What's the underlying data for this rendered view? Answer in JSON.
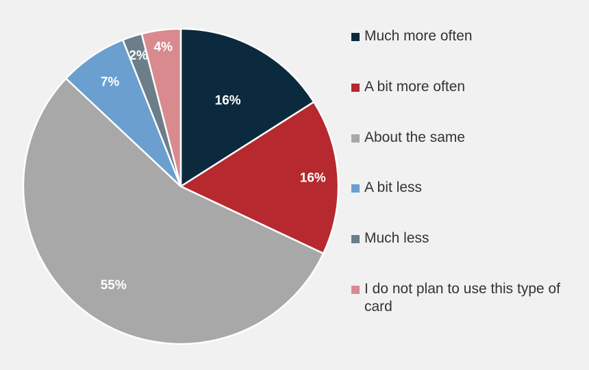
{
  "chart_data": {
    "type": "pie",
    "title": "",
    "legend_position": "right",
    "slices": [
      {
        "name": "Much more often",
        "value": 16,
        "label": "16%",
        "color": "#0b2a3d",
        "label_color": "#ffffff"
      },
      {
        "name": "A bit more often",
        "value": 16,
        "label": "16%",
        "color": "#b5292f",
        "label_color": "#ffffff"
      },
      {
        "name": "About the same",
        "value": 55,
        "label": "55%",
        "color": "#a8a8a8",
        "label_color": "#ffffff"
      },
      {
        "name": "A bit less",
        "value": 7,
        "label": "7%",
        "color": "#6a9fd0",
        "label_color": "#ffffff"
      },
      {
        "name": "Much less",
        "value": 2,
        "label": "2%",
        "color": "#6b7e89",
        "label_color": "#ffffff"
      },
      {
        "name": "I do not plan to use this type of card",
        "value": 4,
        "label": "4%",
        "color": "#d98a8e",
        "label_color": "#ffffff"
      }
    ]
  },
  "legend": {
    "items": [
      "Much more often",
      "A bit more often",
      "About the same",
      "A bit less",
      "Much less",
      "I do not plan to use this type of card"
    ]
  },
  "colors": {
    "background": "#f1f1f1",
    "slice_border": "#ffffff"
  }
}
